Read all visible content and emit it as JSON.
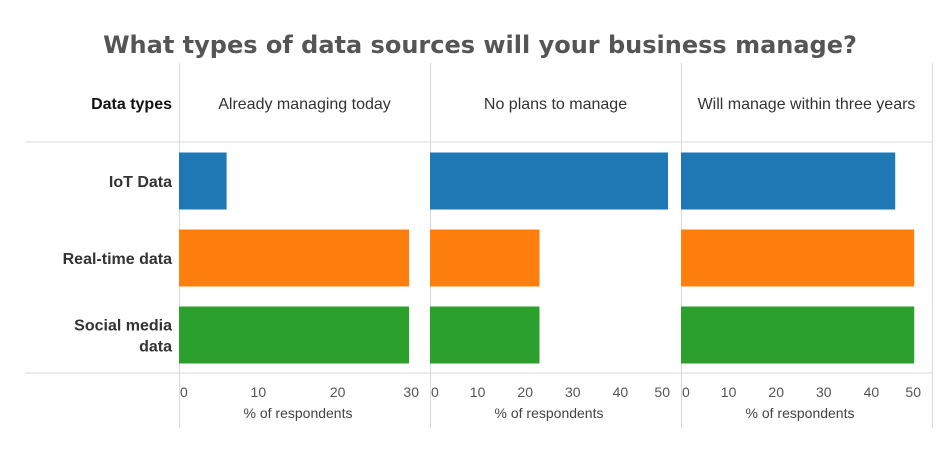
{
  "chart_data": {
    "type": "bar",
    "orientation": "horizontal",
    "title": "What types of data sources will your business manage?",
    "row_header": "Data types",
    "categories": [
      "IoT Data",
      "Real-time data",
      "Social media data"
    ],
    "category_lines": [
      [
        "IoT Data"
      ],
      [
        "Real-time data"
      ],
      [
        "Social media",
        "data"
      ]
    ],
    "colors": [
      "#1f77b4",
      "#ff7f0e",
      "#2ca02c"
    ],
    "panels": [
      {
        "name": "Already managing today",
        "values": [
          6,
          29,
          29
        ],
        "xlim": [
          0,
          30
        ],
        "ticks": [
          0,
          10,
          20,
          30
        ],
        "xlabel": "% of respondents"
      },
      {
        "name": "No plans to manage",
        "values": [
          50,
          23,
          23
        ],
        "xlim": [
          0,
          50
        ],
        "ticks": [
          0,
          10,
          20,
          30,
          40,
          50
        ],
        "xlabel": "% of respondents"
      },
      {
        "name": "Will manage within three years",
        "values": [
          45,
          49,
          49
        ],
        "xlim": [
          0,
          50
        ],
        "ticks": [
          0,
          10,
          20,
          30,
          40,
          50
        ],
        "xlabel": "% of respondents"
      }
    ],
    "grid": false,
    "legend": "none"
  }
}
